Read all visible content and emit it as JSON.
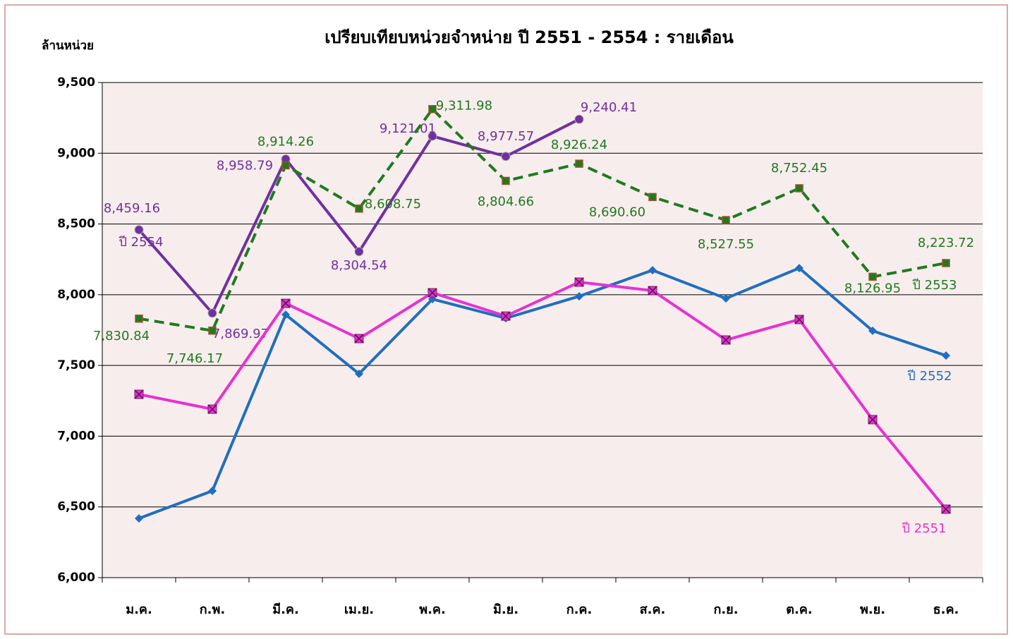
{
  "chart_data": {
    "type": "line",
    "title": "เปรียบเทียบหน่วยจำหน่าย ปี 2551 - 2554 : รายเดือน",
    "y_label": "ล้านหน่วย",
    "categories": [
      "ม.ค.",
      "ก.พ.",
      "มี.ค.",
      "เม.ย.",
      "พ.ค.",
      "มิ.ย.",
      "ก.ค.",
      "ส.ค.",
      "ก.ย.",
      "ต.ค.",
      "พ.ย.",
      "ธ.ค."
    ],
    "ylim": [
      6000,
      9500
    ],
    "yticks": [
      {
        "value": 6000,
        "label": "6,000"
      },
      {
        "value": 6500,
        "label": "6,500"
      },
      {
        "value": 7000,
        "label": "7,000"
      },
      {
        "value": 7500,
        "label": "7,500"
      },
      {
        "value": 8000,
        "label": "8,000"
      },
      {
        "value": 8500,
        "label": "8,500"
      },
      {
        "value": 9000,
        "label": "9,000"
      },
      {
        "value": 9500,
        "label": "9,500"
      }
    ],
    "grid": true,
    "series": [
      {
        "name": "ปี 2554",
        "color": "#7030a0",
        "marker": "circle",
        "dash": false,
        "values": [
          8459.16,
          7869.97,
          8958.79,
          8304.54,
          9121.01,
          8977.57,
          9240.41,
          null,
          null,
          null,
          null,
          null
        ],
        "value_labels": [
          "8,459.16",
          "7,869.97",
          "8,958.79",
          "8,304.54",
          "9,121.01",
          "8,977.57",
          "9,240.41",
          null,
          null,
          null,
          null,
          null
        ]
      },
      {
        "name": "ปี 2553",
        "color": "#1e7b1e",
        "marker": "square",
        "dash": true,
        "values": [
          7830.84,
          7746.17,
          8914.26,
          8608.75,
          9311.98,
          8804.66,
          8926.24,
          8690.6,
          8527.55,
          8752.45,
          8126.95,
          8223.72
        ],
        "value_labels": [
          "7,830.84",
          "7,746.17",
          "8,914.26",
          "8,608.75",
          "9,311.98",
          "8,804.66",
          "8,926.24",
          "8,690.60",
          "8,527.55",
          "8,752.45",
          "8,126.95",
          "8,223.72"
        ]
      },
      {
        "name": "ปี 2552",
        "color": "#1f6fbf",
        "marker": "diamond",
        "dash": false,
        "values": [
          6419,
          6613,
          7859,
          7441,
          7969,
          7834,
          7989,
          8173,
          7974,
          8188,
          7745,
          7570
        ]
      },
      {
        "name": "ปี 2551",
        "color": "#e632d2",
        "marker": "xsquare",
        "dash": false,
        "values": [
          7296,
          7191,
          7939,
          7690,
          8014,
          7849,
          8089,
          8029,
          7680,
          7825,
          7117,
          6484
        ]
      }
    ]
  }
}
